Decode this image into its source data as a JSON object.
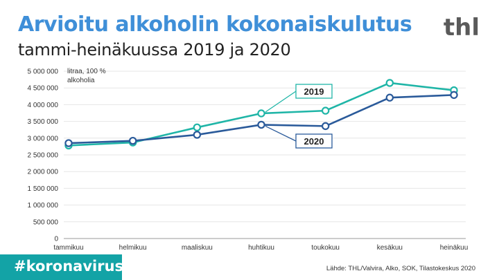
{
  "header": {
    "title": "Arvioitu alkoholin kokonaiskulutus",
    "subtitle": "tammi-heinäkuussa 2019 ja 2020",
    "logo_text": "thl"
  },
  "footer": {
    "hashtag": "#koronavirus",
    "source": "Lähde: THL/Valvira, Alko, SOK, Tilastokeskus 2020"
  },
  "colors": {
    "title": "#3f8fd8",
    "series_2019": "#1fb5a7",
    "series_2020": "#2a5a9a",
    "banner": "#13a3a6"
  },
  "chart_data": {
    "type": "line",
    "ylabel_line1": "litraa, 100 %",
    "ylabel_line2": "alkoholia",
    "ylim": [
      0,
      5000000
    ],
    "yticks": [
      0,
      500000,
      1000000,
      1500000,
      2000000,
      2500000,
      3000000,
      3500000,
      4000000,
      4500000,
      5000000
    ],
    "ytick_labels": [
      "0",
      "500 000",
      "1 000 000",
      "1 500 000",
      "2 000 000",
      "2 500 000",
      "3 000 000",
      "3 500 000",
      "4 000 000",
      "4 500 000",
      "5 000 000"
    ],
    "grid": true,
    "categories": [
      "tammikuu",
      "helmikuu",
      "maaliskuu",
      "huhtikuu",
      "toukokuu",
      "kesäkuu",
      "heinäkuu"
    ],
    "series": [
      {
        "name": "2019",
        "values": [
          2780000,
          2870000,
          3320000,
          3740000,
          3820000,
          4650000,
          4430000
        ]
      },
      {
        "name": "2020",
        "values": [
          2850000,
          2920000,
          3100000,
          3400000,
          3360000,
          4210000,
          4290000
        ]
      }
    ]
  }
}
